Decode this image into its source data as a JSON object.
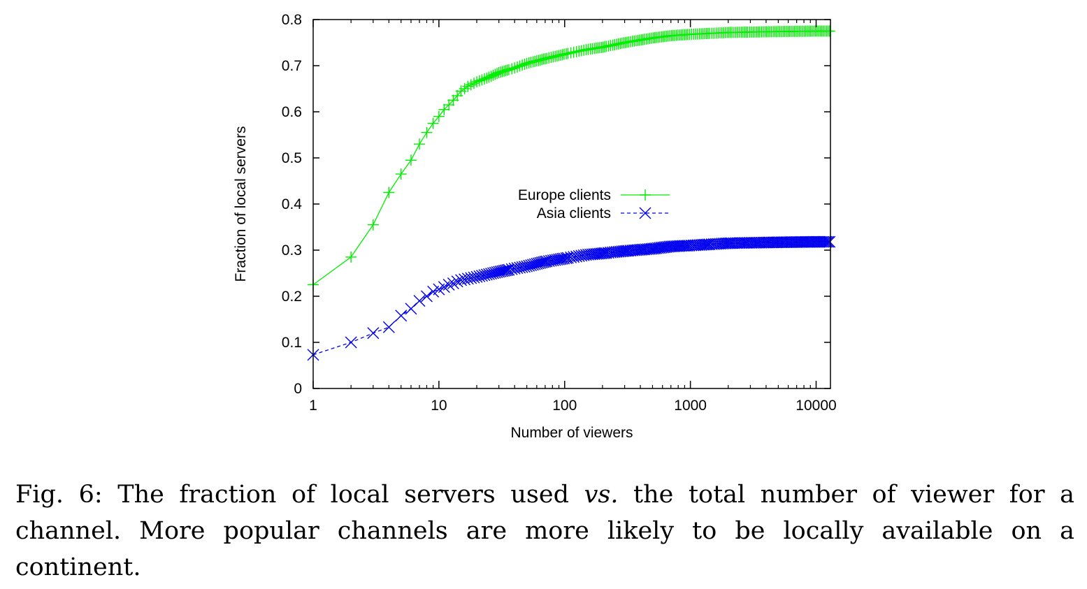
{
  "caption": {
    "prefix": "Fig. 6: The fraction of local servers used ",
    "emph": "vs.",
    "suffix": " the total number of viewer for a channel. More popular channels are more likely to be locally available on a continent."
  },
  "chart_data": {
    "type": "line",
    "xlabel": "Number of viewers",
    "ylabel": "Fraction of local servers",
    "xscale": "log",
    "xlim": [
      1,
      13000
    ],
    "ylim": [
      0,
      0.8
    ],
    "xticks": [
      1,
      10,
      100,
      1000,
      10000
    ],
    "xtick_labels": [
      "1",
      "10",
      "100",
      "1000",
      "10000"
    ],
    "yticks": [
      0,
      0.1,
      0.2,
      0.3,
      0.4,
      0.5,
      0.6,
      0.7,
      0.8
    ],
    "ytick_labels": [
      "0",
      "0.1",
      "0.2",
      "0.3",
      "0.4",
      "0.5",
      "0.6",
      "0.7",
      "0.8"
    ],
    "grid": false,
    "legend_position": "center-right",
    "series": [
      {
        "name": "Europe clients",
        "color": "#00ee00",
        "marker": "plus",
        "line": "solid",
        "x": [
          1,
          2,
          3,
          4,
          5,
          6,
          7,
          8,
          9,
          10,
          11,
          12,
          13,
          14,
          15,
          17,
          20,
          25,
          30,
          40,
          50,
          70,
          100,
          150,
          200,
          300,
          500,
          700,
          1000,
          2000,
          5000,
          10000,
          13000
        ],
        "y": [
          0.225,
          0.285,
          0.355,
          0.425,
          0.465,
          0.495,
          0.53,
          0.555,
          0.575,
          0.59,
          0.605,
          0.615,
          0.625,
          0.635,
          0.645,
          0.655,
          0.665,
          0.675,
          0.685,
          0.695,
          0.705,
          0.715,
          0.725,
          0.735,
          0.74,
          0.75,
          0.76,
          0.765,
          0.768,
          0.772,
          0.774,
          0.775,
          0.775
        ]
      },
      {
        "name": "Asia clients",
        "color": "#0000ee",
        "marker": "x",
        "line": "dashed",
        "x": [
          1,
          2,
          3,
          4,
          5,
          6,
          7,
          8,
          9,
          10,
          11,
          12,
          13,
          14,
          15,
          17,
          20,
          25,
          30,
          40,
          50,
          70,
          100,
          150,
          200,
          300,
          500,
          700,
          1000,
          2000,
          5000,
          10000,
          13000
        ],
        "y": [
          0.073,
          0.1,
          0.12,
          0.133,
          0.158,
          0.173,
          0.19,
          0.2,
          0.21,
          0.215,
          0.22,
          0.225,
          0.228,
          0.232,
          0.235,
          0.238,
          0.242,
          0.248,
          0.253,
          0.26,
          0.265,
          0.275,
          0.282,
          0.29,
          0.293,
          0.298,
          0.303,
          0.308,
          0.31,
          0.315,
          0.317,
          0.318,
          0.318
        ]
      }
    ]
  }
}
